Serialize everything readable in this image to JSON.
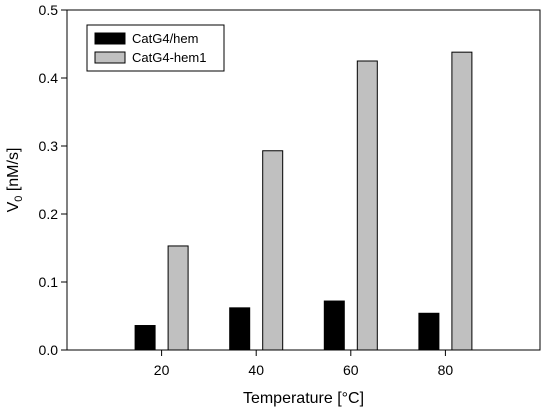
{
  "chart_data": {
    "type": "bar",
    "title": "",
    "xlabel": "Temperature [°C]",
    "ylabel": "V",
    "ylabel_sub": "0",
    "ylabel_suffix": " [nM/s]",
    "categories": [
      "20",
      "40",
      "60",
      "80"
    ],
    "ylim": [
      0,
      0.5
    ],
    "yticks": [
      "0.0",
      "0.1",
      "0.2",
      "0.3",
      "0.4",
      "0.5"
    ],
    "grid": false,
    "legend_position": "top-left",
    "series": [
      {
        "name": "CatG4/hem",
        "color": "#000000",
        "values": [
          0.036,
          0.062,
          0.072,
          0.054
        ]
      },
      {
        "name": "CatG4-hem1",
        "color": "#c0c0c0",
        "values": [
          0.153,
          0.293,
          0.425,
          0.438
        ]
      }
    ]
  }
}
